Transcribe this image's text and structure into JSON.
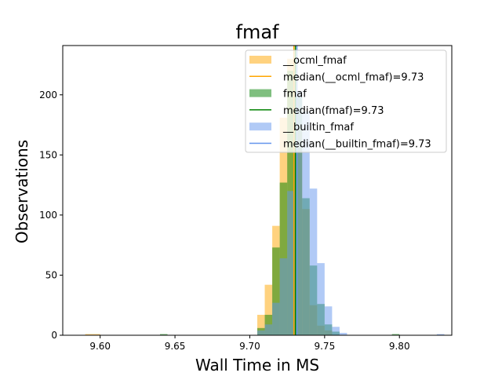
{
  "chart_data": {
    "type": "histogram",
    "title": "fmaf",
    "xlabel": "Wall Time in MS",
    "ylabel": "Observations",
    "xlim": [
      9.575,
      9.835
    ],
    "ylim": [
      0,
      241
    ],
    "x_ticks": [
      9.6,
      9.65,
      9.7,
      9.75,
      9.8
    ],
    "x_tick_labels": [
      "9.60",
      "9.65",
      "9.70",
      "9.75",
      "9.80"
    ],
    "y_ticks": [
      0,
      50,
      100,
      150,
      200
    ],
    "y_tick_labels": [
      "0",
      "50",
      "100",
      "150",
      "200"
    ],
    "bin_width": 0.005,
    "legend_position": "top-right",
    "series": [
      {
        "name": "__ocml_fmaf",
        "color": "#ffa500",
        "opacity": 0.5,
        "bins": [
          [
            9.59,
            1
          ],
          [
            9.595,
            1
          ],
          [
            9.705,
            17
          ],
          [
            9.71,
            42
          ],
          [
            9.715,
            91
          ],
          [
            9.72,
            181
          ],
          [
            9.725,
            230
          ],
          [
            9.73,
            175
          ],
          [
            9.735,
            105
          ],
          [
            9.74,
            25
          ],
          [
            9.745,
            8
          ],
          [
            9.75,
            4
          ]
        ],
        "median": 9.73,
        "median_label": "median(__ocml_fmaf)=9.73"
      },
      {
        "name": "fmaf",
        "color": "#008000",
        "opacity": 0.5,
        "bins": [
          [
            9.64,
            1
          ],
          [
            9.705,
            6
          ],
          [
            9.71,
            17
          ],
          [
            9.715,
            73
          ],
          [
            9.72,
            127
          ],
          [
            9.725,
            220
          ],
          [
            9.73,
            198
          ],
          [
            9.735,
            114
          ],
          [
            9.74,
            58
          ],
          [
            9.745,
            26
          ],
          [
            9.75,
            9
          ],
          [
            9.755,
            3
          ],
          [
            9.795,
            1
          ]
        ],
        "median": 9.73,
        "median_label": "median(fmaf)=9.73"
      },
      {
        "name": "__builtin_fmaf",
        "color": "#6495ed",
        "opacity": 0.5,
        "bins": [
          [
            9.705,
            4
          ],
          [
            9.71,
            9
          ],
          [
            9.715,
            27
          ],
          [
            9.72,
            64
          ],
          [
            9.725,
            120
          ],
          [
            9.73,
            203
          ],
          [
            9.735,
            186
          ],
          [
            9.74,
            122
          ],
          [
            9.745,
            60
          ],
          [
            9.75,
            24
          ],
          [
            9.755,
            7
          ],
          [
            9.76,
            2
          ],
          [
            9.825,
            1
          ]
        ],
        "median": 9.73,
        "median_label": "median(__builtin_fmaf)=9.73"
      }
    ],
    "median_lines": [
      {
        "x": 9.7295,
        "color": "#ffa500"
      },
      {
        "x": 9.7305,
        "color": "#008000"
      },
      {
        "x": 9.7315,
        "color": "#6495ed"
      }
    ]
  }
}
